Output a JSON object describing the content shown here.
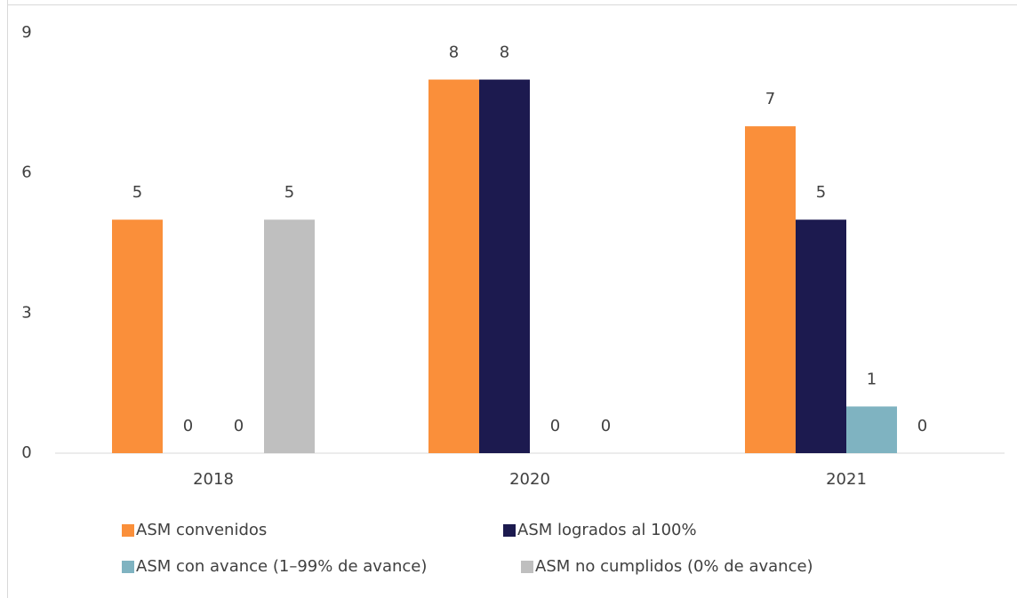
{
  "chart_data": {
    "type": "bar",
    "categories": [
      "2018",
      "2020",
      "2021"
    ],
    "series": [
      {
        "name": "ASM convenidos",
        "color": "#fa8f3a",
        "values": [
          5,
          8,
          7
        ]
      },
      {
        "name": "ASM logrados al 100%",
        "color": "#1c1a4f",
        "values": [
          0,
          8,
          5
        ]
      },
      {
        "name": "ASM con avance (1–99% de avance)",
        "color": "#7fb3c1",
        "values": [
          0,
          0,
          1
        ]
      },
      {
        "name": "ASM no cumplidos (0% de avance)",
        "color": "#bfbfbf",
        "values": [
          5,
          0,
          0
        ]
      }
    ],
    "ylim": [
      0,
      9
    ],
    "yticks": [
      0,
      3,
      6,
      9
    ],
    "grid": false,
    "legend": "bottom"
  }
}
